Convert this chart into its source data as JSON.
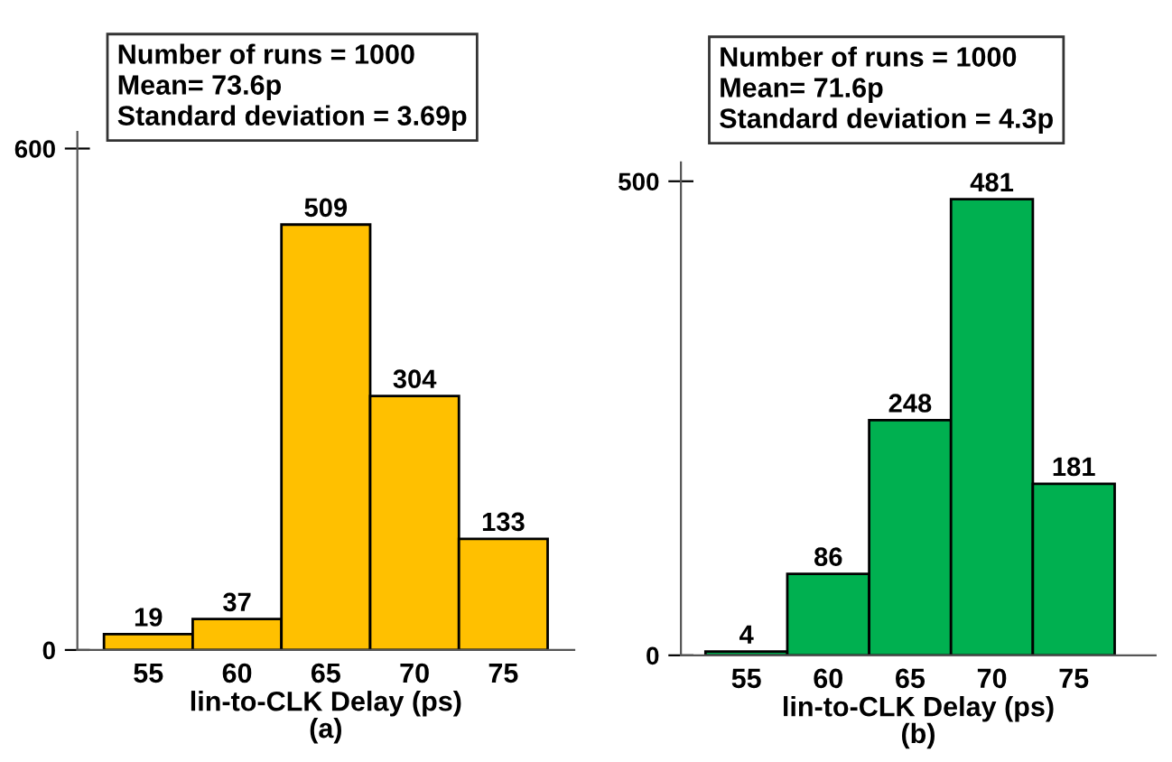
{
  "chart_data": [
    {
      "type": "histogram",
      "bins": [
        52.5,
        57.5,
        62.5,
        67.5,
        72.5,
        77.5
      ],
      "values": [
        19,
        37,
        509,
        304,
        133
      ],
      "color": "#ffc000",
      "xlim": [
        51,
        79
      ],
      "xticks": [
        55,
        60,
        65,
        70,
        75
      ],
      "ylim": [
        0,
        620
      ],
      "yticks": [
        0,
        600
      ],
      "xlabel": "lin-to-CLK Delay (ps)",
      "data_labels": true,
      "grid": false,
      "legend": false,
      "annotations": [
        "Number of runs = 1000",
        "Mean= 73.6p",
        "Standard deviation = 3.69p",
        "(a)"
      ]
    },
    {
      "type": "histogram",
      "bins": [
        52.5,
        57.5,
        62.5,
        67.5,
        72.5,
        77.5
      ],
      "values": [
        4,
        86,
        248,
        481,
        181
      ],
      "color": "#00b050",
      "xlim": [
        51,
        80
      ],
      "xticks": [
        55,
        60,
        65,
        70,
        75
      ],
      "ylim": [
        0,
        520
      ],
      "yticks": [
        0,
        500
      ],
      "xlabel": "lin-to-CLK Delay (ps)",
      "data_labels": true,
      "grid": false,
      "legend": false,
      "annotations": [
        "Number of runs = 1000",
        "Mean= 71.6p",
        "Standard deviation = 4.3p",
        "(b)"
      ]
    }
  ]
}
